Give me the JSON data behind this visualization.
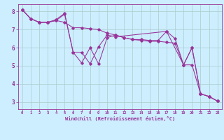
{
  "xlabel": "Windchill (Refroidissement éolien,°C)",
  "bg_color": "#cceeff",
  "grid_color": "#aacccc",
  "line_color": "#993399",
  "xlim": [
    -0.5,
    23.5
  ],
  "ylim": [
    2.6,
    8.4
  ],
  "yticks": [
    3,
    4,
    5,
    6,
    7,
    8
  ],
  "xticks": [
    0,
    1,
    2,
    3,
    4,
    5,
    6,
    7,
    8,
    9,
    10,
    11,
    12,
    13,
    14,
    15,
    16,
    17,
    18,
    19,
    20,
    21,
    22,
    23
  ],
  "line1_x": [
    0,
    1,
    2,
    3,
    4,
    5,
    6,
    7,
    8,
    9,
    10,
    11,
    12,
    13,
    14,
    15,
    16,
    17,
    18,
    19,
    20,
    21,
    22,
    23
  ],
  "line1_y": [
    8.1,
    7.6,
    7.4,
    7.4,
    7.5,
    7.4,
    7.1,
    7.1,
    7.05,
    7.0,
    6.8,
    6.7,
    6.55,
    6.45,
    6.4,
    6.35,
    6.35,
    6.3,
    6.25,
    5.05,
    5.05,
    3.45,
    3.3,
    3.05
  ],
  "line2_x": [
    0,
    1,
    2,
    3,
    4,
    5,
    6,
    7,
    8,
    9,
    10,
    11,
    17,
    19,
    20,
    21,
    22,
    23
  ],
  "line2_y": [
    8.1,
    7.6,
    7.4,
    7.4,
    7.5,
    7.85,
    5.75,
    5.75,
    5.1,
    6.05,
    6.7,
    6.6,
    6.9,
    5.05,
    6.0,
    3.45,
    3.3,
    3.05
  ],
  "line3_x": [
    0,
    1,
    2,
    3,
    4,
    5,
    6,
    7,
    8,
    9,
    10,
    11,
    12,
    13,
    14,
    15,
    16,
    17,
    18,
    19,
    20,
    21,
    22,
    23
  ],
  "line3_y": [
    8.1,
    7.6,
    7.4,
    7.4,
    7.55,
    7.9,
    5.75,
    5.15,
    6.0,
    5.1,
    6.55,
    6.7,
    6.55,
    6.45,
    6.45,
    6.4,
    6.4,
    6.9,
    6.5,
    5.05,
    6.0,
    3.45,
    3.3,
    3.05
  ]
}
